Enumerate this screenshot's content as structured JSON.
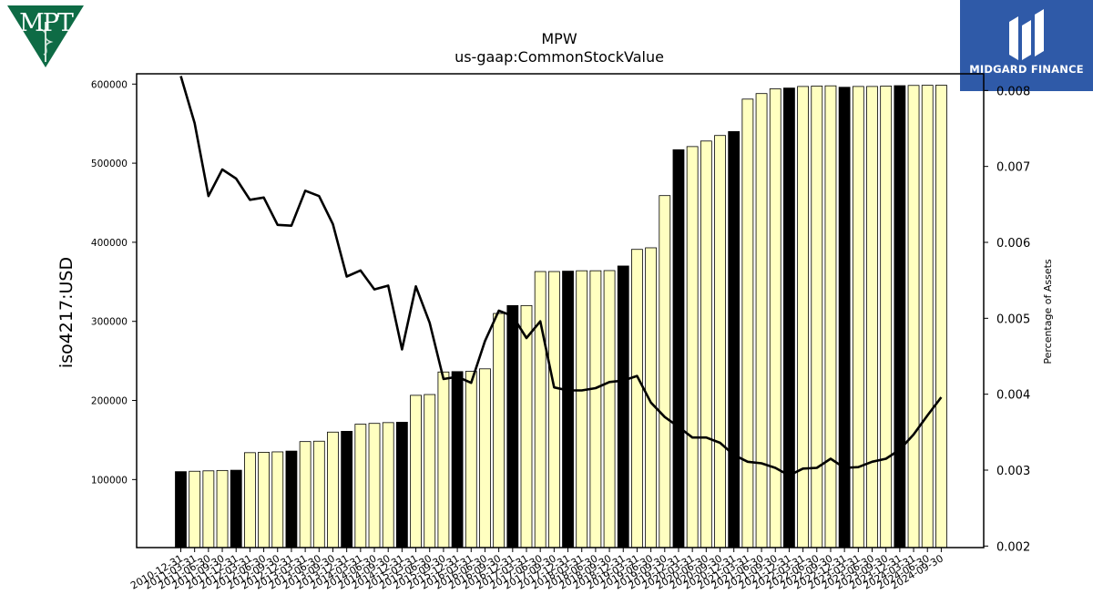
{
  "logos": {
    "left": {
      "text": "MPT",
      "color": "#0e6b45"
    },
    "right": {
      "text": "MIDGARD FINANCE",
      "color": "#2f5aa8"
    }
  },
  "chart_data": {
    "type": "bar",
    "title": "MPW",
    "subtitle": "us-gaap:CommonStockValue",
    "ylabel": "iso4217:USD",
    "y2label": "Percentage of Assets",
    "ylim": [
      14000,
      613000
    ],
    "y2lim": [
      0.00198,
      0.00822
    ],
    "yticks": [
      100000,
      200000,
      300000,
      400000,
      500000,
      600000
    ],
    "y2ticks": [
      0.002,
      0.003,
      0.004,
      0.005,
      0.006,
      0.007,
      0.008
    ],
    "grid": false,
    "colors": {
      "bar_fill": "#ffffc0",
      "bar_fill_annual": "#000000",
      "bar_edge": "#000000",
      "line": "#000000"
    },
    "categories": [
      "2010-12-31",
      "2011-03-31",
      "2011-06-30",
      "2011-09-30",
      "2011-12-31",
      "2012-03-31",
      "2012-06-30",
      "2012-09-30",
      "2012-12-31",
      "2013-03-31",
      "2013-06-30",
      "2013-09-30",
      "2013-12-31",
      "2014-03-31",
      "2014-06-30",
      "2014-09-30",
      "2014-12-31",
      "2015-03-31",
      "2015-06-30",
      "2015-09-30",
      "2015-12-31",
      "2016-03-31",
      "2016-06-30",
      "2016-09-30",
      "2016-12-31",
      "2017-03-31",
      "2017-06-30",
      "2017-09-30",
      "2017-12-31",
      "2018-03-31",
      "2018-06-30",
      "2018-09-30",
      "2018-12-31",
      "2019-03-31",
      "2019-06-30",
      "2019-09-30",
      "2019-12-31",
      "2020-03-31",
      "2020-06-30",
      "2020-09-30",
      "2020-12-31",
      "2021-03-31",
      "2021-06-30",
      "2021-09-30",
      "2021-12-31",
      "2022-03-31",
      "2022-06-30",
      "2022-09-30",
      "2022-12-31",
      "2023-03-31",
      "2023-06-30",
      "2023-09-30",
      "2023-12-31",
      "2024-03-31",
      "2024-06-30",
      "2024-09-30"
    ],
    "series": [
      {
        "kind": "bar",
        "axis": "left",
        "values": [
          110000,
          110500,
          111000,
          111500,
          111800,
          134000,
          134500,
          135000,
          136000,
          148000,
          148500,
          160000,
          161000,
          170000,
          171000,
          172000,
          172500,
          206500,
          207500,
          236000,
          236500,
          236800,
          240000,
          310000,
          320000,
          320000,
          363000,
          363000,
          363500,
          364000,
          364000,
          364200,
          370000,
          391000,
          393000,
          459000,
          517000,
          521000,
          528000,
          535000,
          540000,
          581000,
          588000,
          594000,
          595000,
          597000,
          597500,
          597800,
          596000,
          597000,
          597000,
          597500,
          598000,
          598300,
          598500,
          598600
        ],
        "annual": [
          true,
          false,
          false,
          false,
          true,
          false,
          false,
          false,
          true,
          false,
          false,
          false,
          true,
          false,
          false,
          false,
          true,
          false,
          false,
          false,
          true,
          false,
          false,
          false,
          true,
          false,
          false,
          false,
          true,
          false,
          false,
          false,
          true,
          false,
          false,
          false,
          true,
          false,
          false,
          false,
          true,
          false,
          false,
          false,
          true,
          false,
          false,
          false,
          true,
          false,
          false,
          false,
          true,
          false,
          false,
          false
        ]
      },
      {
        "name": "Percentage of Assets",
        "kind": "line",
        "axis": "right",
        "values": [
          0.00819,
          0.00757,
          0.00661,
          0.00696,
          0.00684,
          0.00656,
          0.00659,
          0.00623,
          0.00622,
          0.00668,
          0.00661,
          0.00624,
          0.00555,
          0.00563,
          0.00538,
          0.00543,
          0.00459,
          0.00542,
          0.00494,
          0.0042,
          0.00423,
          0.00415,
          0.0047,
          0.0051,
          0.00503,
          0.00474,
          0.00496,
          0.00409,
          0.00405,
          0.00405,
          0.00408,
          0.00416,
          0.00418,
          0.00424,
          0.00389,
          0.0037,
          0.00357,
          0.00343,
          0.00343,
          0.00336,
          0.0032,
          0.00311,
          0.00309,
          0.00303,
          0.00293,
          0.00302,
          0.00303,
          0.00315,
          0.00303,
          0.00304,
          0.00311,
          0.00315,
          0.00327,
          0.00347,
          0.00372,
          0.00396
        ]
      }
    ]
  }
}
